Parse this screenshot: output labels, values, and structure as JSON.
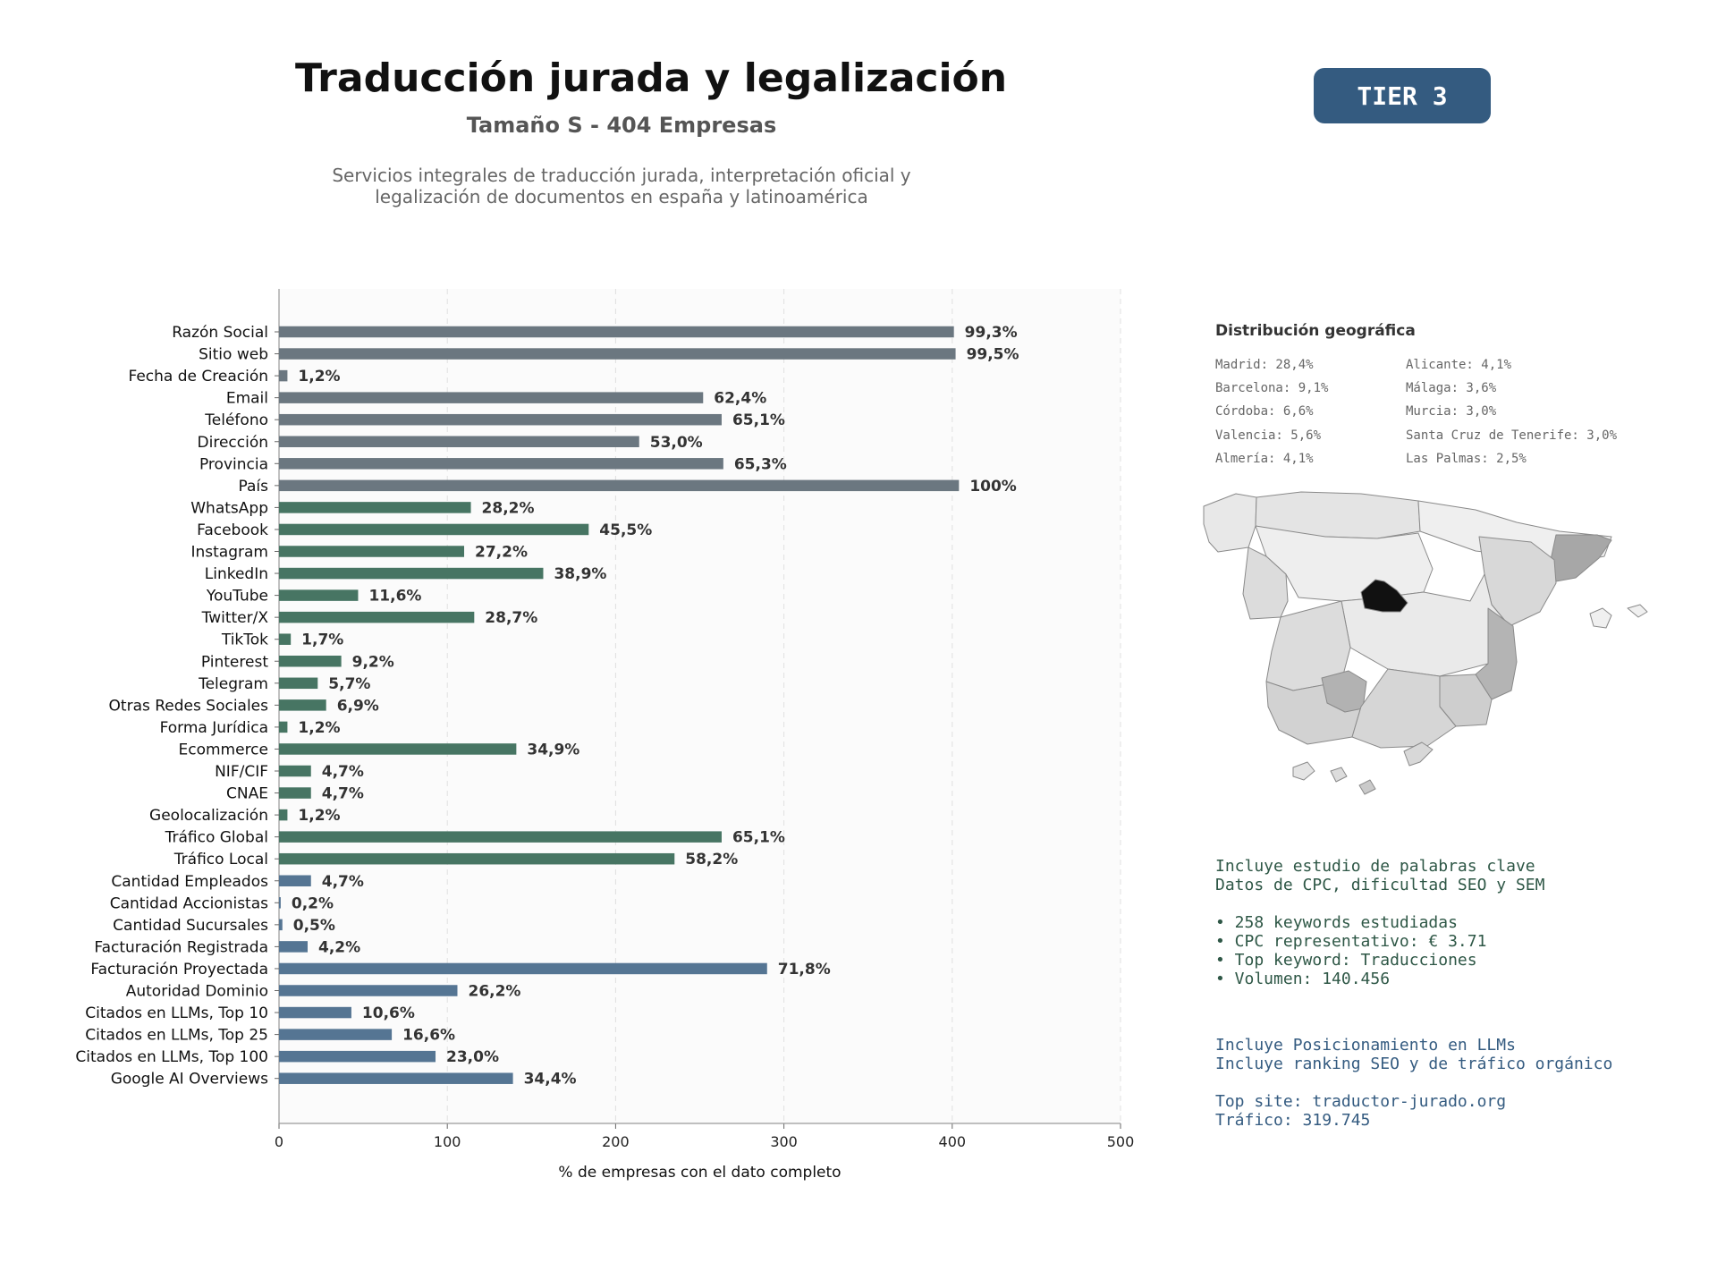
{
  "header": {
    "title": "Traducción jurada y legalización",
    "subtitle": "Tamaño S - 404 Empresas",
    "description_line1": "Servicios integrales de traducción jurada, interpretación oficial y",
    "description_line2": "legalización de documentos en españa y latinoamérica",
    "tier_label": "TIER 3"
  },
  "colors": {
    "gray_bar": "#6b7780",
    "green_bar": "#477563",
    "blue_bar": "#557593",
    "tier_badge": "#345b80",
    "green_text": "#2e5746",
    "blue_text": "#345b80"
  },
  "chart_data": {
    "type": "bar",
    "orientation": "horizontal",
    "xlabel": "% de empresas con el dato completo",
    "xlim": [
      0,
      500
    ],
    "xticks": [
      0,
      100,
      200,
      300,
      400,
      500
    ],
    "grid": "vertical dashed",
    "categories": [
      "Razón Social",
      "Sitio web",
      "Fecha de Creación",
      "Email",
      "Teléfono",
      "Dirección",
      "Provincia",
      "País",
      "WhatsApp",
      "Facebook",
      "Instagram",
      "LinkedIn",
      "YouTube",
      "Twitter/X",
      "TikTok",
      "Pinterest",
      "Telegram",
      "Otras Redes Sociales",
      "Forma Jurídica",
      "Ecommerce",
      "NIF/CIF",
      "CNAE",
      "Geolocalización",
      "Tráfico Global",
      "Tráfico Local",
      "Cantidad Empleados",
      "Cantidad Accionistas",
      "Cantidad Sucursales",
      "Facturación Registrada",
      "Facturación Proyectada",
      "Autoridad Dominio",
      "Citados en LLMs, Top 10",
      "Citados en LLMs, Top 25",
      "Citados en LLMs, Top 100",
      "Google AI Overviews"
    ],
    "values": [
      401,
      402,
      5,
      252,
      263,
      214,
      264,
      404,
      114,
      184,
      110,
      157,
      47,
      116,
      7,
      37,
      23,
      28,
      5,
      141,
      19,
      19,
      5,
      263,
      235,
      19,
      1,
      2,
      17,
      290,
      106,
      43,
      67,
      93,
      139
    ],
    "labels": [
      "99,3%",
      "99,5%",
      "1,2%",
      "62,4%",
      "65,1%",
      "53,0%",
      "65,3%",
      "100%",
      "28,2%",
      "45,5%",
      "27,2%",
      "38,9%",
      "11,6%",
      "28,7%",
      "1,7%",
      "9,2%",
      "5,7%",
      "6,9%",
      "1,2%",
      "34,9%",
      "4,7%",
      "4,7%",
      "1,2%",
      "65,1%",
      "58,2%",
      "4,7%",
      "0,2%",
      "0,5%",
      "4,2%",
      "71,8%",
      "26,2%",
      "10,6%",
      "16,6%",
      "23,0%",
      "34,4%"
    ],
    "groups": [
      "gray",
      "gray",
      "gray",
      "gray",
      "gray",
      "gray",
      "gray",
      "gray",
      "green",
      "green",
      "green",
      "green",
      "green",
      "green",
      "green",
      "green",
      "green",
      "green",
      "green",
      "green",
      "green",
      "green",
      "green",
      "green",
      "green",
      "blue",
      "blue",
      "blue",
      "blue",
      "blue",
      "blue",
      "blue",
      "blue",
      "blue",
      "blue"
    ]
  },
  "geo": {
    "title": "Distribución geográfica",
    "col1": [
      "Madrid: 28,4%",
      "Barcelona: 9,1%",
      "Córdoba: 6,6%",
      "Valencia: 5,6%",
      "Almería: 4,1%"
    ],
    "col2": [
      "Alicante: 4,1%",
      "Málaga: 3,6%",
      "Murcia: 3,0%",
      "Santa Cruz de Tenerife: 3,0%",
      "Las Palmas: 2,5%"
    ]
  },
  "seo": {
    "line1": "Incluye estudio de palabras clave",
    "line2": "Datos de CPC, dificultad SEO y SEM",
    "bullets": [
      "• 258 keywords estudiadas",
      "• CPC representativo: € 3.71",
      "• Top keyword: Traducciones",
      "• Volumen: 140.456"
    ]
  },
  "llm": {
    "line1": "Incluye Posicionamiento en LLMs",
    "line2": "Incluye ranking SEO y de tráfico orgánico",
    "top_site": "Top site: traductor-jurado.org",
    "traffic": "Tráfico: 319.745"
  }
}
